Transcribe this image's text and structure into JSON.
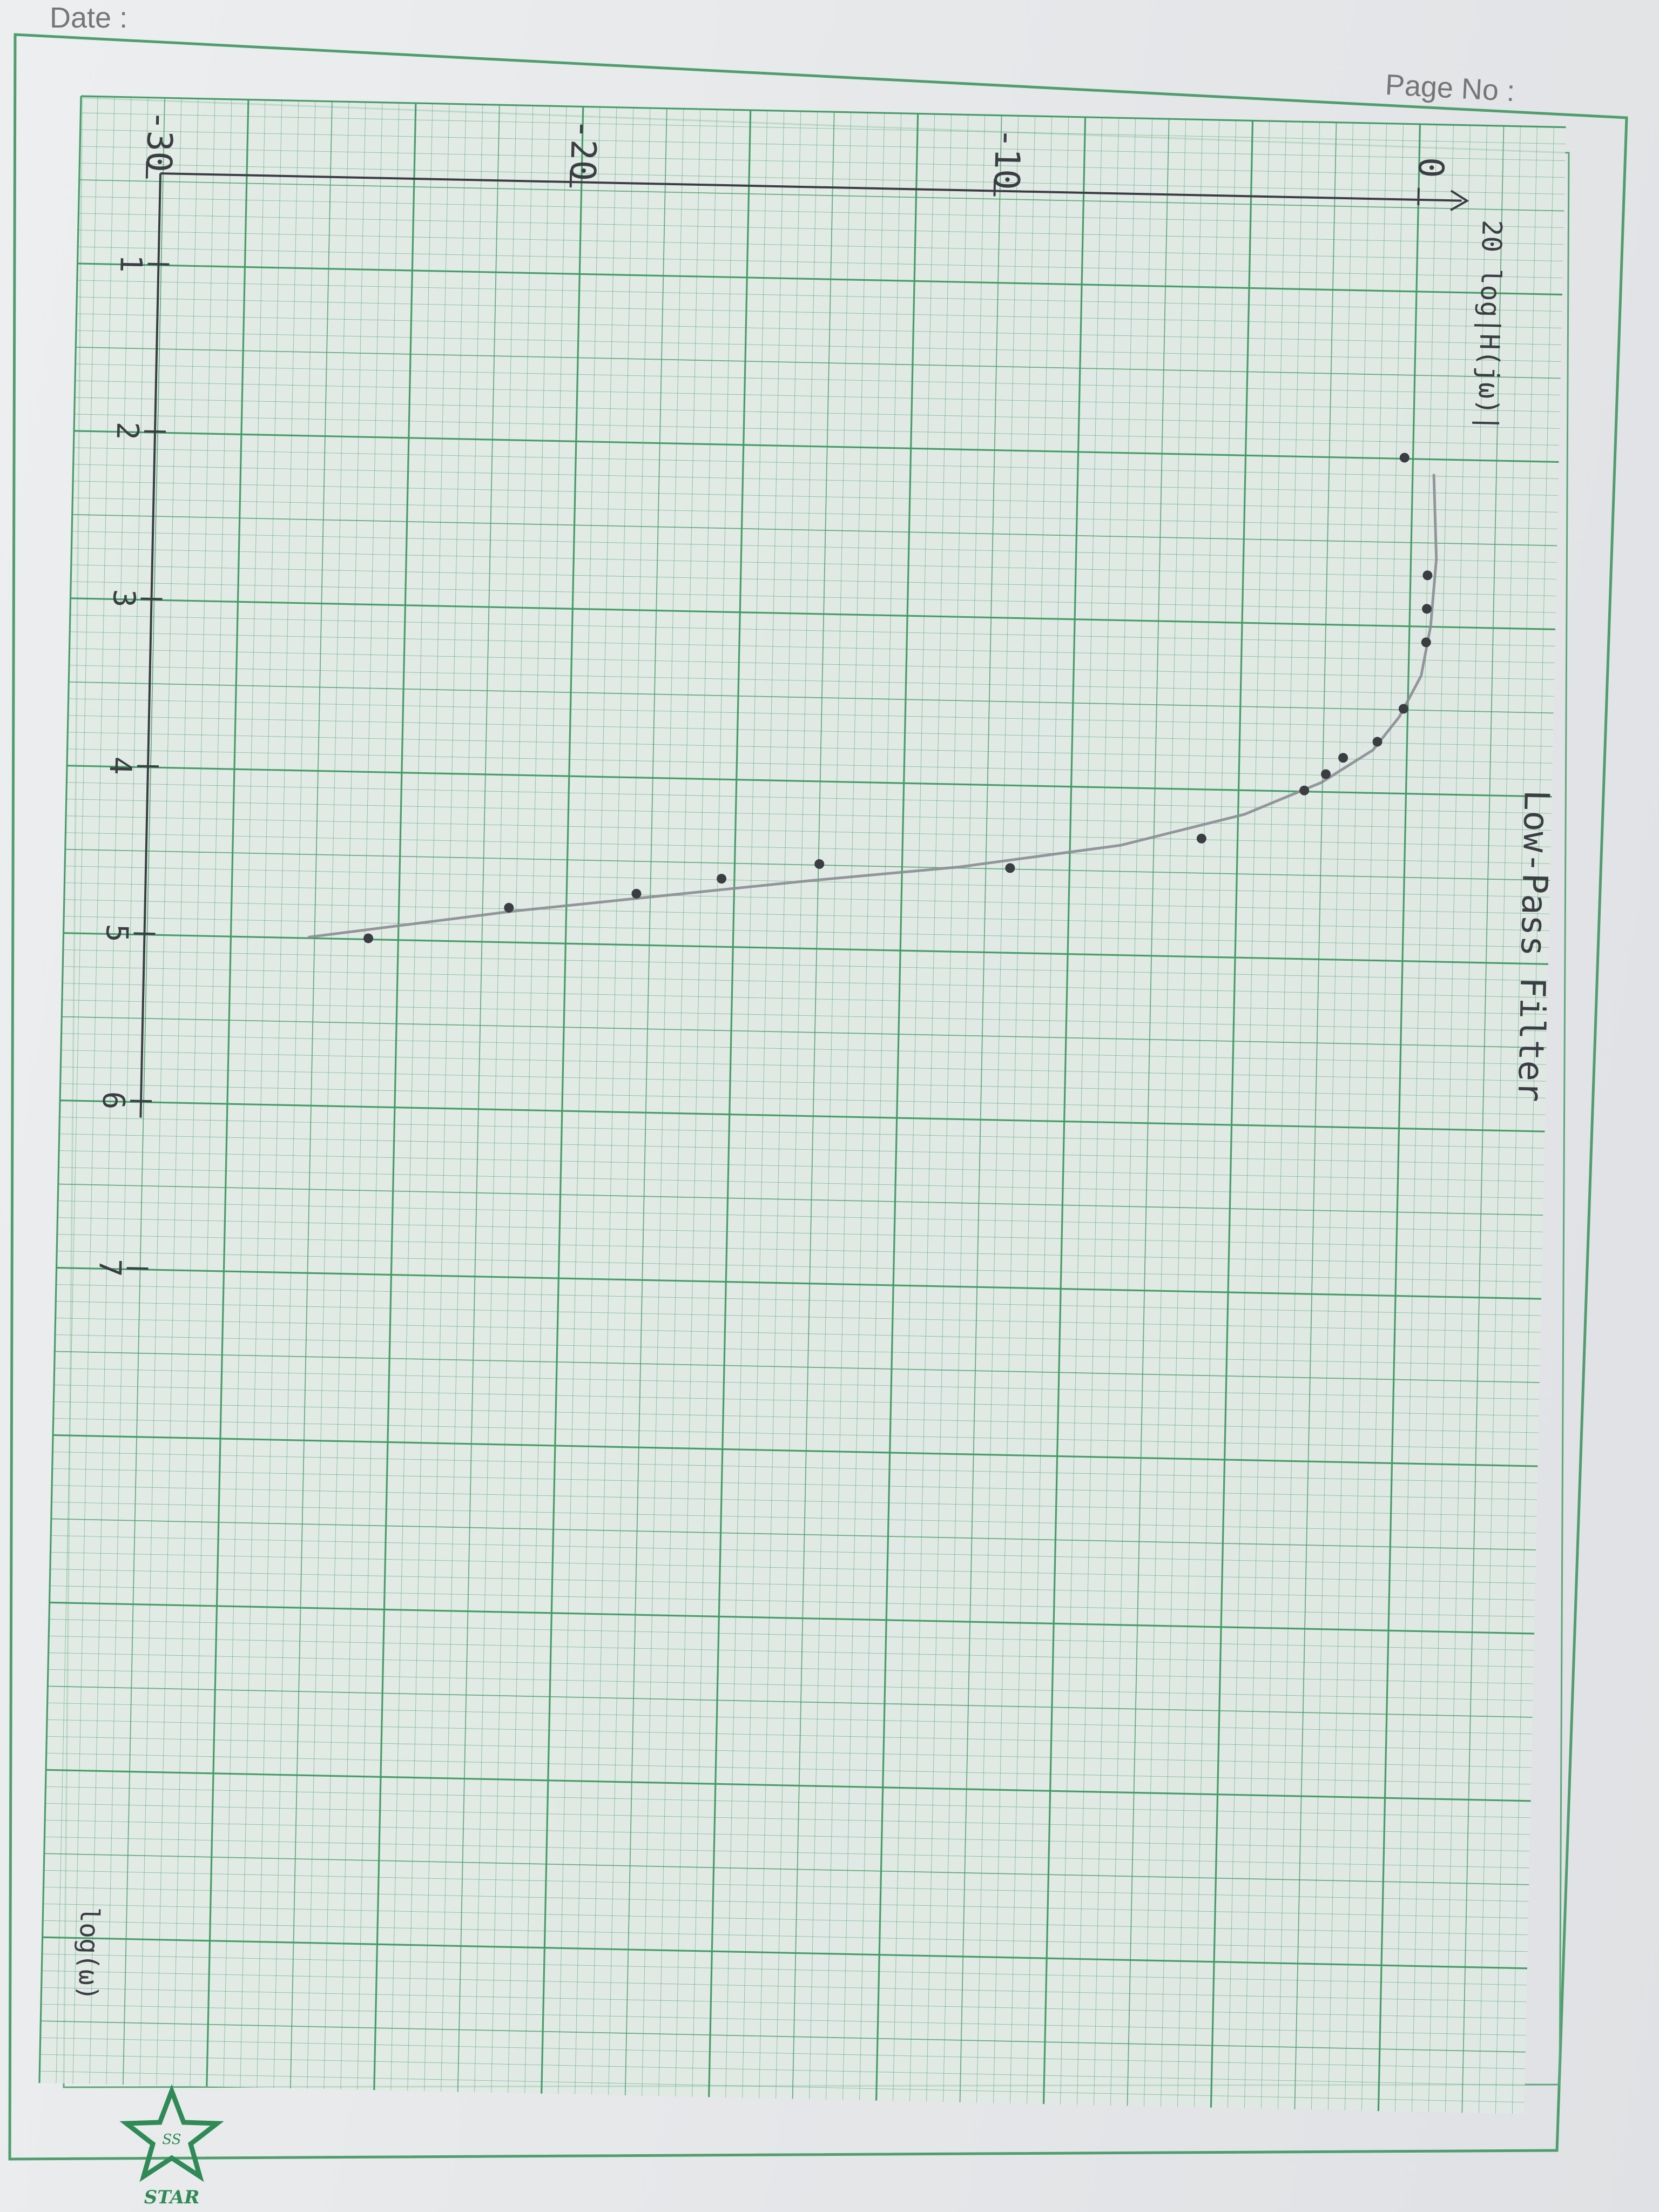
{
  "sheet": {
    "date_label": "Date :",
    "page_no_label": "Page No :",
    "brand_text": "STAR",
    "brand_initials": "SS"
  },
  "chart_data": {
    "type": "scatter",
    "title": "Low-Pass Filter",
    "xlabel": "log(ω)",
    "ylabel": "20 log|H(jω)|",
    "x_ticks": [
      "1",
      "2",
      "3",
      "4",
      "5",
      "6",
      "7"
    ],
    "y_ticks": [
      "0",
      "-10",
      "-20",
      "-30"
    ],
    "xlim": [
      0,
      8.2
    ],
    "ylim": [
      -33,
      1
    ],
    "grid": true,
    "series": [
      {
        "values": [
          {
            "x": 2.0,
            "y": -0.2
          },
          {
            "x": 2.7,
            "y": 0.4
          },
          {
            "x": 2.9,
            "y": 0.4
          },
          {
            "x": 3.1,
            "y": 0.4
          },
          {
            "x": 3.5,
            "y": -0.1
          },
          {
            "x": 3.7,
            "y": -0.7
          },
          {
            "x": 3.8,
            "y": -1.5
          },
          {
            "x": 3.9,
            "y": -1.9
          },
          {
            "x": 4.0,
            "y": -2.4
          },
          {
            "x": 4.3,
            "y": -4.8
          },
          {
            "x": 4.5,
            "y": -9.3
          },
          {
            "x": 4.5,
            "y": -13.8
          },
          {
            "x": 4.6,
            "y": -16.1
          },
          {
            "x": 4.7,
            "y": -18.1
          },
          {
            "x": 4.8,
            "y": -21.1
          },
          {
            "x": 5.0,
            "y": -24.4
          }
        ]
      }
    ],
    "fit_curve": [
      {
        "x": 2.1,
        "y": 0.5
      },
      {
        "x": 2.6,
        "y": 0.6
      },
      {
        "x": 3.0,
        "y": 0.5
      },
      {
        "x": 3.3,
        "y": 0.3
      },
      {
        "x": 3.55,
        "y": -0.2
      },
      {
        "x": 3.75,
        "y": -0.8
      },
      {
        "x": 3.95,
        "y": -2.0
      },
      {
        "x": 4.15,
        "y": -3.8
      },
      {
        "x": 4.35,
        "y": -6.7
      },
      {
        "x": 4.5,
        "y": -10.5
      },
      {
        "x": 4.6,
        "y": -14.0
      },
      {
        "x": 4.7,
        "y": -17.2
      },
      {
        "x": 4.82,
        "y": -21.0
      },
      {
        "x": 5.0,
        "y": -25.8
      }
    ]
  }
}
